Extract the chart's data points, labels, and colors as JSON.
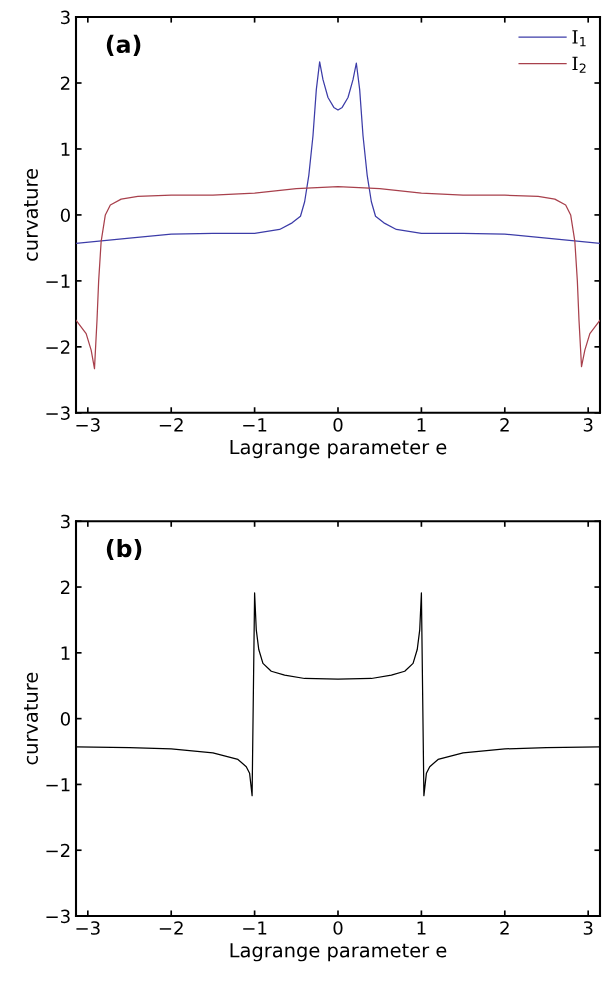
{
  "chart_data": [
    {
      "type": "line",
      "xlabel": "Lagrange parameter e",
      "ylabel": "curvature",
      "annotations": [
        "(a)"
      ],
      "xlim": [
        -3.1416,
        3.1416
      ],
      "ylim": [
        -3,
        3
      ],
      "xticks": [
        -3,
        -2,
        -1,
        0,
        1,
        2,
        3
      ],
      "yticks": [
        -3,
        -2,
        -1,
        0,
        1,
        2,
        3
      ],
      "grid": false,
      "legend": "top right",
      "line_style": "solid",
      "marker": "none",
      "series": [
        {
          "name": "I$_{1}$",
          "color": "#3c3ca8",
          "x": [
            -3.14,
            -2.5,
            -2.0,
            -1.5,
            -1.0,
            -0.7,
            -0.55,
            -0.45,
            -0.4,
            -0.35,
            -0.3,
            -0.26,
            -0.22,
            -0.18,
            -0.12,
            -0.05,
            0.0,
            0.05,
            0.12,
            0.18,
            0.22,
            0.26,
            0.3,
            0.35,
            0.4,
            0.45,
            0.55,
            0.7,
            1.0,
            1.5,
            2.0,
            2.5,
            3.14
          ],
          "values": [
            -0.43,
            -0.35,
            -0.29,
            -0.28,
            -0.28,
            -0.22,
            -0.12,
            -0.02,
            0.2,
            0.6,
            1.2,
            1.9,
            2.32,
            2.05,
            1.78,
            1.63,
            1.59,
            1.63,
            1.78,
            2.05,
            2.3,
            1.9,
            1.2,
            0.6,
            0.2,
            -0.02,
            -0.12,
            -0.22,
            -0.28,
            -0.28,
            -0.29,
            -0.35,
            -0.43
          ]
        },
        {
          "name": "I$_{2}$",
          "color": "#a8404c",
          "x": [
            -3.14,
            -3.02,
            -2.96,
            -2.92,
            -2.89,
            -2.87,
            -2.84,
            -2.79,
            -2.73,
            -2.6,
            -2.4,
            -2.0,
            -1.5,
            -1.0,
            -0.5,
            0.0,
            0.5,
            1.0,
            1.5,
            2.0,
            2.4,
            2.6,
            2.73,
            2.79,
            2.84,
            2.87,
            2.89,
            2.92,
            2.96,
            3.02,
            3.14
          ],
          "values": [
            -1.6,
            -1.8,
            -2.05,
            -2.33,
            -1.6,
            -1.0,
            -0.4,
            0.0,
            0.15,
            0.24,
            0.28,
            0.3,
            0.3,
            0.33,
            0.4,
            0.43,
            0.4,
            0.33,
            0.3,
            0.3,
            0.28,
            0.24,
            0.15,
            0.0,
            -0.4,
            -1.0,
            -1.6,
            -2.3,
            -2.05,
            -1.8,
            -1.6
          ]
        }
      ]
    },
    {
      "type": "line",
      "xlabel": "Lagrange parameter e",
      "ylabel": "curvature",
      "annotations": [
        "(b)"
      ],
      "xlim": [
        -3.1416,
        3.1416
      ],
      "ylim": [
        -3,
        3
      ],
      "xticks": [
        -3,
        -2,
        -1,
        0,
        1,
        2,
        3
      ],
      "yticks": [
        -3,
        -2,
        -1,
        0,
        1,
        2,
        3
      ],
      "grid": false,
      "line_style": "solid",
      "marker": "none",
      "series": [
        {
          "color": "#000000",
          "x": [
            -3.14,
            -2.5,
            -2.0,
            -1.5,
            -1.2,
            -1.1,
            -1.06,
            -1.03,
            -1.0,
            -0.98,
            -0.95,
            -0.9,
            -0.8,
            -0.64,
            -0.4,
            0.0,
            0.4,
            0.64,
            0.8,
            0.9,
            0.95,
            0.98,
            1.0,
            1.03,
            1.06,
            1.1,
            1.2,
            1.5,
            2.0,
            2.5,
            3.14
          ],
          "values": [
            -0.43,
            -0.44,
            -0.46,
            -0.52,
            -0.62,
            -0.73,
            -0.83,
            -1.17,
            1.91,
            1.35,
            1.05,
            0.84,
            0.72,
            0.66,
            0.61,
            0.6,
            0.61,
            0.66,
            0.72,
            0.84,
            1.05,
            1.35,
            1.91,
            -1.17,
            -0.83,
            -0.73,
            -0.62,
            -0.52,
            -0.46,
            -0.44,
            -0.43
          ]
        }
      ]
    }
  ]
}
